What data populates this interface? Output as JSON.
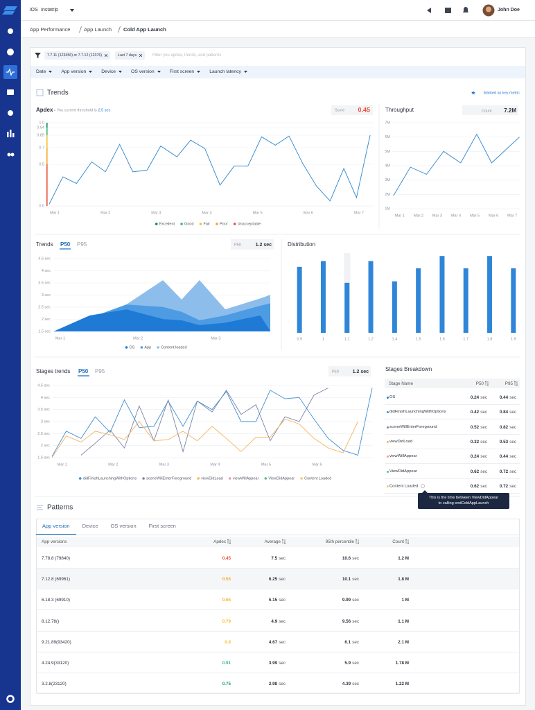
{
  "topbar": {
    "platform": "iOS",
    "app": "Instatrip",
    "user": "John Doe"
  },
  "breadcrumb": [
    "App Performance",
    "App Launch",
    "Cold App Launch"
  ],
  "filters": {
    "chips": [
      "7.7.11 (123456) or 7.7.12 (12376)",
      "Last 7 days"
    ],
    "placeholder": "Filter you apdex, trends, and patterns",
    "dropdowns": [
      "Date",
      "App version",
      "Device",
      "OS version",
      "First screen",
      "Launch latency"
    ]
  },
  "trends": {
    "title": "Trends",
    "key_metric": "Marked as key metric"
  },
  "chart_data": [
    {
      "type": "line",
      "title": "Apdex",
      "subtitle": "You current threshold is",
      "threshold": "2.5 sec",
      "score_label": "Score",
      "score": 0.45,
      "score_color": "#e8503a",
      "color": "#3d8fd1",
      "x": [
        0.89,
        1.16,
        1.43,
        1.73,
        2.0,
        2.28,
        2.54,
        2.82,
        3.09,
        3.41,
        3.68,
        3.96,
        4.26,
        4.54,
        4.81,
        5.08,
        5.35,
        5.62,
        5.89,
        6.16,
        6.43,
        6.7,
        6.95,
        7.22
      ],
      "values": [
        0.02,
        0.35,
        0.27,
        0.53,
        0.41,
        0.74,
        0.41,
        0.43,
        0.72,
        0.59,
        0.79,
        0.69,
        0.25,
        0.48,
        0.48,
        0.83,
        0.73,
        0.84,
        0.51,
        0.24,
        0.06,
        0.45,
        0.1,
        0.85
      ],
      "xlim": [
        0.85,
        7.3
      ],
      "xticks": [
        {
          "value": 1,
          "label": "Mar 1"
        },
        {
          "value": 2,
          "label": "Mar 2"
        },
        {
          "value": 3,
          "label": "Mar 3"
        },
        {
          "value": 4,
          "label": "Mar 4"
        },
        {
          "value": 5,
          "label": "Mar 5"
        },
        {
          "value": 6,
          "label": "Mar 6"
        },
        {
          "value": 7,
          "label": "Mar 7"
        }
      ],
      "ylim": [
        0,
        1
      ],
      "yticks": [
        {
          "value": 0,
          "label": "0.0"
        },
        0.5,
        0.7,
        0.85,
        0.94,
        {
          "value": 1,
          "label": "1.0"
        }
      ],
      "grid": true,
      "legend": [
        {
          "name": "Excellent",
          "color": "#12845a"
        },
        {
          "name": "Good",
          "color": "#2bbf7a"
        },
        {
          "name": "Fair",
          "color": "#f2c12e"
        },
        {
          "name": "Poor",
          "color": "#f5a623"
        },
        {
          "name": "Unacceptable",
          "color": "#e8503a"
        }
      ]
    },
    {
      "type": "line",
      "title": "Throughput",
      "count_label": "Count",
      "count": "7.2M",
      "color": "#3d8fd1",
      "x": [
        0.66,
        1.57,
        2.43,
        3.34,
        4.25,
        5.11,
        5.9,
        7.38
      ],
      "values": [
        1.9,
        3.9,
        3.4,
        5.0,
        4.2,
        6.2,
        4.2,
        6.0
      ],
      "xlim": [
        0.6,
        7.4
      ],
      "xticks": [
        {
          "value": 1,
          "label": "Mar 1"
        },
        {
          "value": 2,
          "label": "Mar 2"
        },
        {
          "value": 3,
          "label": "Mar 3"
        },
        {
          "value": 4,
          "label": "Mar 4"
        },
        {
          "value": 5,
          "label": "Mar 5"
        },
        {
          "value": 6,
          "label": "Mar 6"
        },
        {
          "value": 7,
          "label": "Mar 7"
        }
      ],
      "ylim": [
        1,
        7
      ],
      "yticks": [
        {
          "value": 1,
          "label": "1M"
        },
        {
          "value": 2,
          "label": "2M"
        },
        {
          "value": 3,
          "label": "3M"
        },
        {
          "value": 4,
          "label": "4M"
        },
        {
          "value": 5,
          "label": "5M"
        },
        {
          "value": 6,
          "label": "6M"
        },
        {
          "value": 7,
          "label": "7M"
        }
      ],
      "grid": true
    },
    {
      "type": "area",
      "title": "Trends",
      "tabs": [
        "P50",
        "P95"
      ],
      "stat_label": "P50",
      "stat": "1.2 sec",
      "x": [
        0.92,
        1.38,
        1.85,
        2.32,
        2.56,
        2.79,
        3.12,
        3.57,
        3.7
      ],
      "series": [
        {
          "name": "OS",
          "color": "#1f7ad6",
          "values": [
            1.5,
            2.15,
            2.4,
            2.0,
            1.95,
            1.75,
            1.85,
            2.15,
            1.5
          ]
        },
        {
          "name": "App",
          "color": "#4d9be3",
          "values": [
            1.5,
            2.05,
            2.6,
            2.5,
            2.3,
            1.95,
            2.15,
            2.55,
            2.65
          ]
        },
        {
          "name": "Content loaded",
          "color": "#8dbdea",
          "values": [
            1.5,
            2.05,
            2.6,
            3.6,
            2.8,
            3.6,
            2.4,
            2.85,
            3.0
          ]
        }
      ],
      "xlim": [
        0.92,
        3.7
      ],
      "xticks": [
        {
          "value": 1,
          "label": "Mar 1"
        },
        {
          "value": 2,
          "label": "Mar 2"
        },
        {
          "value": 3,
          "label": "Mar 3"
        }
      ],
      "ylim": [
        1.5,
        4.5
      ],
      "yticks": [
        {
          "value": 1.5,
          "label": "1.5 sec"
        },
        {
          "value": 2,
          "label": "2 sec"
        },
        {
          "value": 2.5,
          "label": "2.5 sec"
        },
        {
          "value": 3,
          "label": "3 sec"
        },
        {
          "value": 3.5,
          "label": "3.5 sec"
        },
        {
          "value": 4,
          "label": "4 sec"
        },
        {
          "value": 4.5,
          "label": "4.5 sec"
        }
      ],
      "grid": true
    },
    {
      "type": "bar",
      "title": "Distribution",
      "categories": [
        "0.9",
        "1",
        "1.1",
        "1.2",
        "1.4",
        "1.5",
        "1.6",
        "1.7",
        "1.8",
        "1.9"
      ],
      "values": [
        91,
        99,
        69,
        99,
        71,
        89,
        106,
        89,
        106,
        89
      ],
      "ylim": [
        0,
        110
      ],
      "color": "#2f86d8",
      "highlight_index": 2
    },
    {
      "type": "line",
      "title": "Stages trends",
      "tabs": [
        "P50",
        "P95"
      ],
      "stat_label": "P50",
      "stat": "1.2 sec",
      "x": [
        0.8,
        1.08,
        1.37,
        1.65,
        1.94,
        2.22,
        2.51,
        2.8,
        3.08,
        3.37,
        3.65,
        3.94,
        4.22,
        4.51,
        4.8,
        5.08,
        5.37,
        5.65,
        5.94,
        6.22,
        6.51,
        6.8,
        7.08
      ],
      "series": [
        {
          "name": "didFinishLaunchingWithOptions",
          "color": "#3d8fd1",
          "values": [
            1.55,
            2.6,
            2.3,
            3.2,
            2.55,
            3.9,
            2.75,
            2.8,
            3.85,
            2.8,
            3.85,
            3.5,
            4.25,
            3.0,
            3.0,
            4.3,
            3.95,
            4.0,
            3.1,
            2.3,
            1.8,
            1.6,
            4.4
          ]
        },
        {
          "name": "sceneWillEnterForeground",
          "color": "#7a84a6",
          "values": [
            null,
            null,
            1.6,
            2.1,
            2.65,
            1.9,
            3.65,
            2.2,
            3.9,
            1.75,
            3.85,
            3.4,
            4.3,
            3.3,
            3.7,
            2.2,
            3.2,
            3.0,
            4.1,
            4.4,
            null,
            null,
            null
          ]
        },
        {
          "name": "viewDidLoad",
          "color": "#f5b35f",
          "values": [
            1.5,
            2.4,
            2.15,
            2.6,
            2.45,
            2.25,
            3.0,
            2.2,
            2.25,
            2.6,
            2.2,
            2.8,
            2.3,
            1.75,
            2.35,
            2.35,
            3.1,
            2.9,
            2.3,
            1.9,
            1.7,
            3.0,
            null
          ]
        },
        {
          "name": "viewWillAppear",
          "color": "#f29b9b",
          "values": [
            null,
            null,
            null,
            null,
            null,
            null,
            null,
            null,
            null,
            null,
            null,
            null,
            null,
            null,
            null,
            null,
            null,
            null,
            null,
            null,
            null,
            null,
            null
          ]
        },
        {
          "name": "ViewDidAppear",
          "color": "#5cc08a",
          "values": [
            null,
            null,
            null,
            null,
            null,
            null,
            null,
            null,
            null,
            null,
            null,
            null,
            null,
            null,
            null,
            null,
            null,
            null,
            null,
            null,
            null,
            null,
            null
          ]
        },
        {
          "name": "Content Loaded",
          "color": "#f4c96b",
          "values": [
            null,
            null,
            null,
            null,
            null,
            null,
            null,
            null,
            null,
            null,
            null,
            null,
            null,
            null,
            null,
            null,
            null,
            null,
            null,
            null,
            null,
            null,
            null
          ]
        }
      ],
      "xlim": [
        0.8,
        7.08
      ],
      "xticks": [
        {
          "value": 1,
          "label": "Mar 1"
        },
        {
          "value": 2,
          "label": "Mar 2"
        },
        {
          "value": 3,
          "label": "Mar 3"
        },
        {
          "value": 4,
          "label": "Mar 4"
        },
        {
          "value": 5,
          "label": "Mar 5"
        },
        {
          "value": 6,
          "label": "Mar 6"
        }
      ],
      "ylim": [
        1.5,
        4.5
      ],
      "yticks": [
        {
          "value": 1.5,
          "label": "1.5 sec"
        },
        {
          "value": 2,
          "label": "2 sec"
        },
        {
          "value": 2.5,
          "label": "2.5 sec"
        },
        {
          "value": 3,
          "label": "3 sec"
        },
        {
          "value": 3.5,
          "label": "3.5 sec"
        },
        {
          "value": 4,
          "label": "4 sec"
        },
        {
          "value": 4.5,
          "label": "4.5 sec"
        }
      ],
      "grid": true
    }
  ],
  "stages_breakdown": {
    "title": "Stages Breakdown",
    "columns": [
      "Stage Name",
      "P50",
      "P95"
    ],
    "unit": "sec",
    "rows": [
      {
        "name": "OS",
        "color": "#1f7ad6",
        "p50": "0.24",
        "p95": "0.44"
      },
      {
        "name": "didFinishLaunchingWithOptions",
        "color": "#3d8fd1",
        "p50": "0.42",
        "p95": "0.84"
      },
      {
        "name": "sceneWillEnterForeground",
        "color": "#7a84a6",
        "p50": "0.52",
        "p95": "0.82"
      },
      {
        "name": "viewDidLoad",
        "color": "#f5b35f",
        "p50": "0.32",
        "p95": "0.53"
      },
      {
        "name": "viewWillAppear",
        "color": "#f29b9b",
        "p50": "0.24",
        "p95": "0.44"
      },
      {
        "name": "ViewDidAppear",
        "color": "#5cc08a",
        "p50": "0.62",
        "p95": "0.72"
      },
      {
        "name": "Content Loaded",
        "color": "#f4c96b",
        "p50": "0.62",
        "p95": "0.72"
      }
    ]
  },
  "tooltip": [
    "This is the time between ViewDidAppear",
    "to calling endColdAppLaunch"
  ],
  "patterns": {
    "title": "Patterns",
    "tabs": [
      "App version",
      "Device",
      "OS version",
      "First screen"
    ],
    "columns": [
      "App versions",
      "Apdex",
      "Average",
      "95th percentile",
      "Count"
    ],
    "unit": "sec",
    "rows": [
      {
        "version": "7.78.8 (79840)",
        "apdex": "0.45",
        "apdex_color": "#e8503a",
        "average": "7.5",
        "p95": "10.6",
        "count": "1.2 M"
      },
      {
        "version": "7.12.8 (69961)",
        "apdex": "0.53",
        "apdex_color": "#f5a623",
        "average": "6.25",
        "p95": "10.1",
        "count": "1.8 M"
      },
      {
        "version": "6.18.3 (69910)",
        "apdex": "0.65",
        "apdex_color": "#f5b523",
        "average": "5.15",
        "p95": "9.99",
        "count": "1 M"
      },
      {
        "version": "8.12.78()",
        "apdex": "0.79",
        "apdex_color": "#f2c12e",
        "average": "4.9",
        "p95": "9.56",
        "count": "1.1 M"
      },
      {
        "version": "9.21.89(93420)",
        "apdex": "0.8",
        "apdex_color": "#f2c12e",
        "average": "4.67",
        "p95": "6.1",
        "count": "2.1 M"
      },
      {
        "version": "4.24.9(33120)",
        "apdex": "0.91",
        "apdex_color": "#2bbf7a",
        "average": "3.99",
        "p95": "5.9",
        "count": "1.78 M"
      },
      {
        "version": "3.2.8(23120)",
        "apdex": "0.75",
        "apdex_color": "#1e9e63",
        "average": "2.98",
        "p95": "4.39",
        "count": "1.22 M"
      }
    ]
  }
}
